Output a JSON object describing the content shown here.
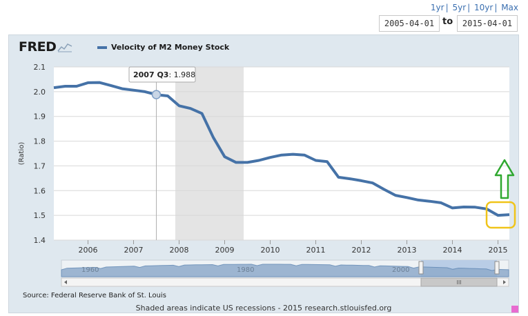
{
  "range_links": [
    "1yr",
    "5yr",
    "10yr",
    "Max"
  ],
  "date_range": {
    "from": "2005-04-01",
    "to_label": "to",
    "to": "2015-04-01"
  },
  "logo": "FRED",
  "source": "Source: Federal Reserve Bank of St. Louis",
  "footer": "Shaded areas indicate US recessions - 2015 research.stlouisfed.org",
  "tooltip": {
    "period": "2007 Q3",
    "value": "1.988"
  },
  "navigator": {
    "labels": [
      "1960",
      "1980",
      "2000"
    ],
    "scroll_label": "III"
  },
  "chart_data": {
    "type": "line",
    "ylabel": "(Ratio)",
    "ylim": [
      1.4,
      2.1
    ],
    "yticks": [
      1.4,
      1.5,
      1.6,
      1.7,
      1.8,
      1.9,
      2.0,
      2.1
    ],
    "xlim": [
      2005.25,
      2015.25
    ],
    "xticks": [
      2006,
      2007,
      2008,
      2009,
      2010,
      2011,
      2012,
      2013,
      2014,
      2015
    ],
    "grid": true,
    "legend": "top-left",
    "series": [
      {
        "name": "Velocity of M2 Money Stock",
        "color": "#4572a7",
        "x": [
          2005.25,
          2005.5,
          2005.75,
          2006.0,
          2006.25,
          2006.5,
          2006.75,
          2007.0,
          2007.25,
          2007.5,
          2007.75,
          2008.0,
          2008.25,
          2008.5,
          2008.75,
          2009.0,
          2009.25,
          2009.5,
          2009.75,
          2010.0,
          2010.25,
          2010.5,
          2010.75,
          2011.0,
          2011.25,
          2011.5,
          2011.75,
          2012.0,
          2012.25,
          2012.5,
          2012.75,
          2013.0,
          2013.25,
          2013.5,
          2013.75,
          2014.0,
          2014.25,
          2014.5,
          2014.75,
          2015.0,
          2015.25
        ],
        "values": [
          2.016,
          2.022,
          2.022,
          2.036,
          2.037,
          2.025,
          2.012,
          2.006,
          2.0,
          1.988,
          1.983,
          1.943,
          1.932,
          1.912,
          1.815,
          1.737,
          1.714,
          1.714,
          1.722,
          1.734,
          1.744,
          1.747,
          1.744,
          1.722,
          1.717,
          1.654,
          1.648,
          1.64,
          1.631,
          1.605,
          1.581,
          1.572,
          1.562,
          1.557,
          1.551,
          1.53,
          1.534,
          1.533,
          1.526,
          1.5,
          1.503
        ]
      }
    ],
    "recessions": [
      [
        2007.917,
        2009.417
      ]
    ],
    "annotations": {
      "highlight_box": "last two quarters",
      "arrow": "up",
      "highlight_color": "#f0c419",
      "arrow_color": "#2fa82f"
    }
  }
}
